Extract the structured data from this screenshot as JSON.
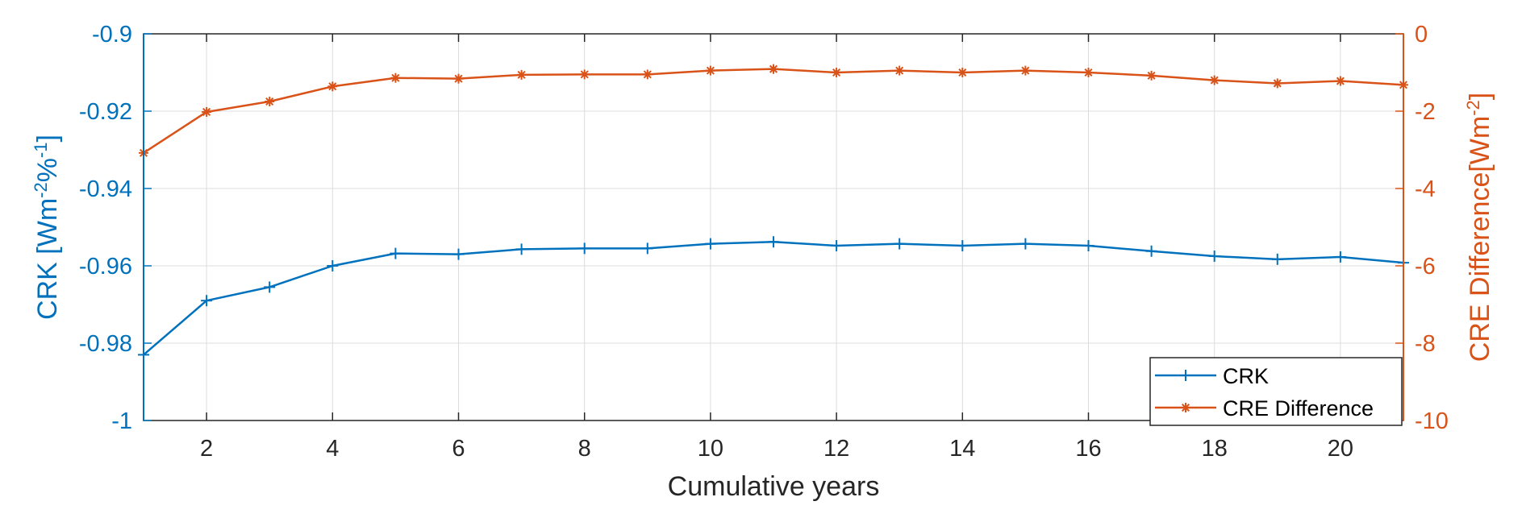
{
  "chart_data": {
    "type": "line",
    "x": [
      1,
      2,
      3,
      4,
      5,
      6,
      7,
      8,
      9,
      10,
      11,
      12,
      13,
      14,
      15,
      16,
      17,
      18,
      19,
      20,
      21
    ],
    "xlabel": "Cumulative years",
    "xlim": [
      1,
      21
    ],
    "xticks": [
      "2",
      "4",
      "6",
      "8",
      "10",
      "12",
      "14",
      "16",
      "18",
      "20"
    ],
    "ylabel_left_parts": [
      "CRK [Wm",
      "-2",
      "%",
      "-1",
      "]"
    ],
    "ylabel_right_parts": [
      "CRE Difference[Wm",
      "-2",
      "]"
    ],
    "ylim_left": [
      -1,
      -0.9
    ],
    "yticks_left": [
      "-1",
      "-0.98",
      "-0.96",
      "-0.94",
      "-0.92",
      "-0.9"
    ],
    "ylim_right": [
      -10,
      0
    ],
    "yticks_right": [
      "-10",
      "-8",
      "-6",
      "-4",
      "-2",
      "0"
    ],
    "grid": true,
    "legend_position": "bottom-right",
    "series": [
      {
        "name": "CRK",
        "axis": "left",
        "marker": "plus",
        "color": "#0072BD",
        "values": [
          -0.983,
          -0.969,
          -0.9655,
          -0.96,
          -0.9568,
          -0.957,
          -0.9557,
          -0.9555,
          -0.9555,
          -0.9543,
          -0.9538,
          -0.9548,
          -0.9543,
          -0.9548,
          -0.9543,
          -0.9548,
          -0.9562,
          -0.9575,
          -0.9583,
          -0.9577,
          -0.9592
        ]
      },
      {
        "name": "CRE Difference",
        "axis": "right",
        "marker": "asterisk",
        "color": "#D95319",
        "values": [
          -3.08,
          -2.02,
          -1.75,
          -1.36,
          -1.14,
          -1.16,
          -1.06,
          -1.05,
          -1.05,
          -0.95,
          -0.91,
          -1.0,
          -0.95,
          -1.0,
          -0.95,
          -1.0,
          -1.08,
          -1.2,
          -1.28,
          -1.22,
          -1.32
        ]
      }
    ]
  }
}
